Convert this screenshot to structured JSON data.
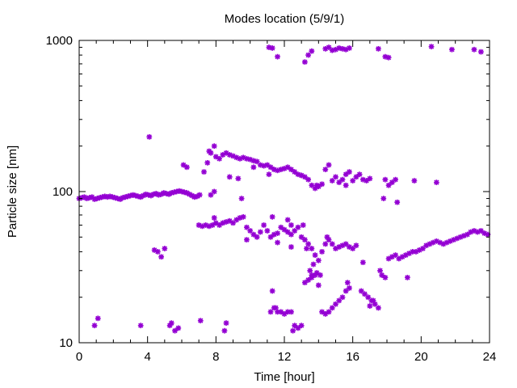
{
  "chart_data": {
    "type": "scatter",
    "title": "Modes location (5/9/1)",
    "xlabel": "Time [hour]",
    "ylabel": "Particle size [nm]",
    "xlim": [
      0,
      24
    ],
    "ylim": [
      10,
      1000
    ],
    "yscale": "log",
    "xticks": [
      0,
      4,
      8,
      12,
      16,
      20,
      24
    ],
    "yticks": [
      10,
      100,
      1000
    ],
    "grid": false,
    "color": "#9400d3",
    "marker": "asterisk",
    "points": [
      [
        0,
        90
      ],
      [
        0.15,
        91
      ],
      [
        0.3,
        92
      ],
      [
        0.45,
        90
      ],
      [
        0.6,
        91
      ],
      [
        0.75,
        92
      ],
      [
        0.9,
        89
      ],
      [
        1.05,
        90
      ],
      [
        1.2,
        91
      ],
      [
        1.35,
        92
      ],
      [
        1.5,
        93
      ],
      [
        1.65,
        92
      ],
      [
        1.8,
        93
      ],
      [
        1.95,
        92
      ],
      [
        2.1,
        91
      ],
      [
        2.25,
        90
      ],
      [
        2.4,
        89
      ],
      [
        2.55,
        91
      ],
      [
        2.7,
        92
      ],
      [
        2.85,
        93
      ],
      [
        3.0,
        94
      ],
      [
        3.15,
        95
      ],
      [
        3.3,
        94
      ],
      [
        3.45,
        93
      ],
      [
        3.6,
        92
      ],
      [
        3.75,
        94
      ],
      [
        3.9,
        96
      ],
      [
        4.05,
        95
      ],
      [
        4.2,
        94
      ],
      [
        4.35,
        96
      ],
      [
        4.5,
        97
      ],
      [
        4.65,
        95
      ],
      [
        4.8,
        96
      ],
      [
        4.95,
        98
      ],
      [
        5.1,
        97
      ],
      [
        5.25,
        96
      ],
      [
        5.4,
        98
      ],
      [
        5.55,
        99
      ],
      [
        5.7,
        100
      ],
      [
        5.85,
        101
      ],
      [
        6.0,
        100
      ],
      [
        6.15,
        99
      ],
      [
        6.3,
        98
      ],
      [
        6.45,
        96
      ],
      [
        6.6,
        94
      ],
      [
        6.75,
        92
      ],
      [
        6.9,
        93
      ],
      [
        7.05,
        95
      ],
      [
        4.1,
        230
      ],
      [
        6.1,
        150
      ],
      [
        6.3,
        145
      ],
      [
        7.3,
        135
      ],
      [
        7.5,
        155
      ],
      [
        7.7,
        180
      ],
      [
        7.9,
        200
      ],
      [
        7.6,
        185
      ],
      [
        8.0,
        170
      ],
      [
        8.2,
        165
      ],
      [
        8.4,
        175
      ],
      [
        8.6,
        180
      ],
      [
        8.8,
        175
      ],
      [
        9.0,
        172
      ],
      [
        9.2,
        168
      ],
      [
        9.4,
        165
      ],
      [
        9.6,
        168
      ],
      [
        9.8,
        165
      ],
      [
        10.0,
        163
      ],
      [
        10.2,
        160
      ],
      [
        10.4,
        158
      ],
      [
        10.6,
        150
      ],
      [
        10.8,
        148
      ],
      [
        11.0,
        150
      ],
      [
        11.2,
        145
      ],
      [
        11.4,
        140
      ],
      [
        11.6,
        138
      ],
      [
        11.8,
        140
      ],
      [
        12.0,
        142
      ],
      [
        12.2,
        145
      ],
      [
        12.4,
        140
      ],
      [
        12.6,
        135
      ],
      [
        12.8,
        130
      ],
      [
        13.0,
        128
      ],
      [
        13.2,
        125
      ],
      [
        13.4,
        120
      ],
      [
        13.6,
        110
      ],
      [
        13.8,
        105
      ],
      [
        14.0,
        108
      ],
      [
        14.2,
        112
      ],
      [
        14.4,
        140
      ],
      [
        14.6,
        150
      ],
      [
        14.8,
        118
      ],
      [
        15.0,
        125
      ],
      [
        15.2,
        115
      ],
      [
        15.4,
        120
      ],
      [
        15.6,
        130
      ],
      [
        15.8,
        135
      ],
      [
        16.0,
        118
      ],
      [
        16.2,
        125
      ],
      [
        16.4,
        130
      ],
      [
        16.6,
        120
      ],
      [
        16.8,
        118
      ],
      [
        17.0,
        122
      ],
      [
        17.9,
        120
      ],
      [
        18.1,
        110
      ],
      [
        18.3,
        115
      ],
      [
        18.5,
        120
      ],
      [
        17.8,
        90
      ],
      [
        18.6,
        85
      ],
      [
        19.6,
        118
      ],
      [
        20.9,
        115
      ],
      [
        7.7,
        95
      ],
      [
        7.9,
        100
      ],
      [
        8.8,
        125
      ],
      [
        9.3,
        122
      ],
      [
        9.5,
        90
      ],
      [
        10.2,
        145
      ],
      [
        11.1,
        130
      ],
      [
        13.0,
        128
      ],
      [
        13.9,
        110
      ],
      [
        15.6,
        110
      ],
      [
        7.0,
        60
      ],
      [
        7.2,
        59
      ],
      [
        7.4,
        60
      ],
      [
        7.6,
        59
      ],
      [
        7.8,
        60
      ],
      [
        8.0,
        62
      ],
      [
        7.9,
        67
      ],
      [
        8.2,
        60
      ],
      [
        8.4,
        62
      ],
      [
        8.6,
        63
      ],
      [
        8.8,
        64
      ],
      [
        9.0,
        62
      ],
      [
        9.2,
        65
      ],
      [
        9.4,
        67
      ],
      [
        9.6,
        68
      ],
      [
        9.8,
        58
      ],
      [
        10.0,
        55
      ],
      [
        10.2,
        52
      ],
      [
        10.4,
        50
      ],
      [
        10.6,
        54
      ],
      [
        10.8,
        60
      ],
      [
        11.0,
        55
      ],
      [
        11.2,
        50
      ],
      [
        11.4,
        52
      ],
      [
        11.6,
        53
      ],
      [
        11.8,
        58
      ],
      [
        12.0,
        56
      ],
      [
        12.2,
        54
      ],
      [
        12.4,
        52
      ],
      [
        12.6,
        55
      ],
      [
        12.8,
        58
      ],
      [
        13.0,
        50
      ],
      [
        13.2,
        48
      ],
      [
        13.4,
        45
      ],
      [
        13.6,
        42
      ],
      [
        13.8,
        38
      ],
      [
        14.0,
        35
      ],
      [
        14.2,
        40
      ],
      [
        14.4,
        45
      ],
      [
        14.6,
        48
      ],
      [
        14.8,
        45
      ],
      [
        15.0,
        42
      ],
      [
        15.2,
        43
      ],
      [
        15.4,
        44
      ],
      [
        15.6,
        45
      ],
      [
        15.8,
        43
      ],
      [
        16.0,
        42
      ],
      [
        16.2,
        44
      ],
      [
        11.3,
        68
      ],
      [
        12.2,
        65
      ],
      [
        12.4,
        60
      ],
      [
        13.1,
        60
      ],
      [
        11.6,
        46
      ],
      [
        9.8,
        48
      ],
      [
        14.5,
        50
      ],
      [
        16.5,
        22
      ],
      [
        16.7,
        21
      ],
      [
        16.9,
        20
      ],
      [
        17.1,
        19
      ],
      [
        17.3,
        18
      ],
      [
        17.5,
        17
      ],
      [
        17.7,
        28
      ],
      [
        17.9,
        27
      ],
      [
        18.1,
        36
      ],
      [
        18.3,
        37
      ],
      [
        18.5,
        38
      ],
      [
        18.7,
        36
      ],
      [
        18.9,
        37
      ],
      [
        19.1,
        38
      ],
      [
        19.3,
        39
      ],
      [
        19.5,
        40
      ],
      [
        19.7,
        40
      ],
      [
        19.9,
        41
      ],
      [
        20.1,
        42
      ],
      [
        20.3,
        44
      ],
      [
        20.5,
        45
      ],
      [
        20.7,
        46
      ],
      [
        20.9,
        47
      ],
      [
        21.1,
        46
      ],
      [
        21.3,
        45
      ],
      [
        21.5,
        46
      ],
      [
        21.7,
        47
      ],
      [
        21.9,
        48
      ],
      [
        22.1,
        49
      ],
      [
        22.3,
        50
      ],
      [
        22.5,
        51
      ],
      [
        22.7,
        52
      ],
      [
        22.9,
        54
      ],
      [
        23.1,
        55
      ],
      [
        23.3,
        54
      ],
      [
        23.5,
        55
      ],
      [
        23.7,
        53
      ],
      [
        23.9,
        52
      ],
      [
        17.6,
        30
      ],
      [
        19.2,
        27
      ],
      [
        16.6,
        34
      ],
      [
        17.0,
        17.5
      ],
      [
        17.2,
        19
      ],
      [
        11.2,
        16
      ],
      [
        11.4,
        17
      ],
      [
        11.6,
        16
      ],
      [
        11.8,
        16
      ],
      [
        12.0,
        15.5
      ],
      [
        12.2,
        16
      ],
      [
        12.4,
        16
      ],
      [
        12.6,
        13
      ],
      [
        12.8,
        12.5
      ],
      [
        13.0,
        13
      ],
      [
        11.3,
        22
      ],
      [
        11.5,
        17
      ],
      [
        12.5,
        12
      ],
      [
        13.2,
        25
      ],
      [
        13.4,
        26
      ],
      [
        13.6,
        27
      ],
      [
        13.8,
        28
      ],
      [
        14.0,
        24
      ],
      [
        14.2,
        16
      ],
      [
        14.4,
        15.5
      ],
      [
        14.6,
        16
      ],
      [
        14.8,
        17
      ],
      [
        15.0,
        18
      ],
      [
        15.2,
        19
      ],
      [
        15.4,
        20
      ],
      [
        15.6,
        22
      ],
      [
        15.8,
        23
      ],
      [
        13.5,
        30
      ],
      [
        13.6,
        28
      ],
      [
        14.1,
        28
      ],
      [
        12.4,
        43
      ],
      [
        13.3,
        42
      ],
      [
        13.7,
        33
      ],
      [
        13.9,
        29
      ],
      [
        15.7,
        25
      ],
      [
        0.9,
        13
      ],
      [
        1.1,
        14.5
      ],
      [
        3.6,
        13
      ],
      [
        4.4,
        41
      ],
      [
        4.6,
        40
      ],
      [
        4.8,
        37
      ],
      [
        5.0,
        42
      ],
      [
        5.3,
        13
      ],
      [
        5.4,
        13.5
      ],
      [
        5.6,
        12
      ],
      [
        5.8,
        12.5
      ],
      [
        7.1,
        14
      ],
      [
        8.5,
        12
      ],
      [
        8.6,
        13.5
      ],
      [
        11.1,
        900
      ],
      [
        11.3,
        890
      ],
      [
        11.6,
        780
      ],
      [
        13.2,
        720
      ],
      [
        13.4,
        800
      ],
      [
        13.6,
        850
      ],
      [
        14.4,
        880
      ],
      [
        14.6,
        900
      ],
      [
        14.8,
        860
      ],
      [
        15.0,
        870
      ],
      [
        15.2,
        890
      ],
      [
        15.4,
        880
      ],
      [
        15.6,
        870
      ],
      [
        15.8,
        890
      ],
      [
        17.5,
        880
      ],
      [
        17.9,
        780
      ],
      [
        18.1,
        770
      ],
      [
        20.6,
        910
      ],
      [
        21.8,
        870
      ],
      [
        23.1,
        870
      ],
      [
        23.5,
        840
      ]
    ]
  }
}
